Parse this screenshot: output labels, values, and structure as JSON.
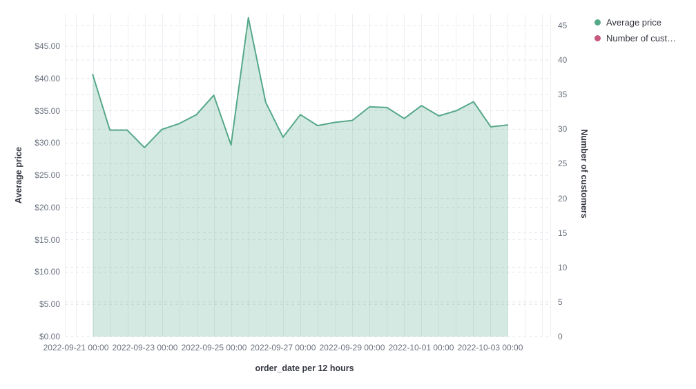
{
  "chart": {
    "legend": {
      "items": [
        {
          "label": "Average price",
          "color": "#55a888"
        },
        {
          "label": "Number of cust…",
          "color": "#c65880"
        }
      ]
    },
    "axes": {
      "left": {
        "title": "Average price",
        "tick_labels": [
          "$0.00",
          "$5.00",
          "$10.00",
          "$15.00",
          "$20.00",
          "$25.00",
          "$30.00",
          "$35.00",
          "$40.00",
          "$45.00"
        ]
      },
      "right": {
        "title": "Number of customers",
        "tick_labels": [
          "0",
          "5",
          "10",
          "15",
          "20",
          "25",
          "30",
          "35",
          "40",
          "45"
        ]
      },
      "x": {
        "title": "order_date per 12 hours",
        "tick_labels": [
          "2022-09-21 00:00",
          "2022-09-23 00:00",
          "2022-09-25 00:00",
          "2022-09-27 00:00",
          "2022-09-29 00:00",
          "2022-10-01 00:00",
          "2022-10-03 00:00"
        ]
      }
    }
  },
  "chart_data": {
    "type": "area",
    "title": "",
    "xlabel": "order_date per 12 hours",
    "ylabel_left": "Average price",
    "ylabel_right": "Number of customers",
    "x_interval": "12 hours",
    "x": [
      "2022-09-21 12:00",
      "2022-09-22 00:00",
      "2022-09-22 12:00",
      "2022-09-23 00:00",
      "2022-09-23 12:00",
      "2022-09-24 00:00",
      "2022-09-24 12:00",
      "2022-09-25 00:00",
      "2022-09-25 12:00",
      "2022-09-26 00:00",
      "2022-09-26 12:00",
      "2022-09-27 00:00",
      "2022-09-27 12:00",
      "2022-09-28 00:00",
      "2022-09-28 12:00",
      "2022-09-29 00:00",
      "2022-09-29 12:00",
      "2022-09-30 00:00",
      "2022-09-30 12:00",
      "2022-10-01 00:00",
      "2022-10-01 12:00",
      "2022-10-02 00:00",
      "2022-10-02 12:00",
      "2022-10-03 00:00",
      "2022-10-03 12:00"
    ],
    "series": [
      {
        "name": "Average price",
        "axis": "left",
        "color": "#55a888",
        "values": [
          40.7,
          32.0,
          32.0,
          29.3,
          32.1,
          33.0,
          34.4,
          37.4,
          29.7,
          49.4,
          36.3,
          30.9,
          34.4,
          32.7,
          33.2,
          33.5,
          35.6,
          35.5,
          33.8,
          35.8,
          34.2,
          35.0,
          36.4,
          32.5,
          32.8
        ]
      },
      {
        "name": "Number of cust…",
        "axis": "right",
        "color": "#c65880",
        "values": [],
        "note": "series shown in legend only; no visible data points"
      }
    ],
    "ylim_left": [
      0,
      50
    ],
    "ylim_right": [
      0,
      45
    ],
    "left_tick_step": 5,
    "right_tick_step": 5,
    "grid": true,
    "gridline_style": "horizontal dashed, vertical solid every 12h",
    "legend_position": "top-right",
    "area_fill_opacity": 0.25
  }
}
